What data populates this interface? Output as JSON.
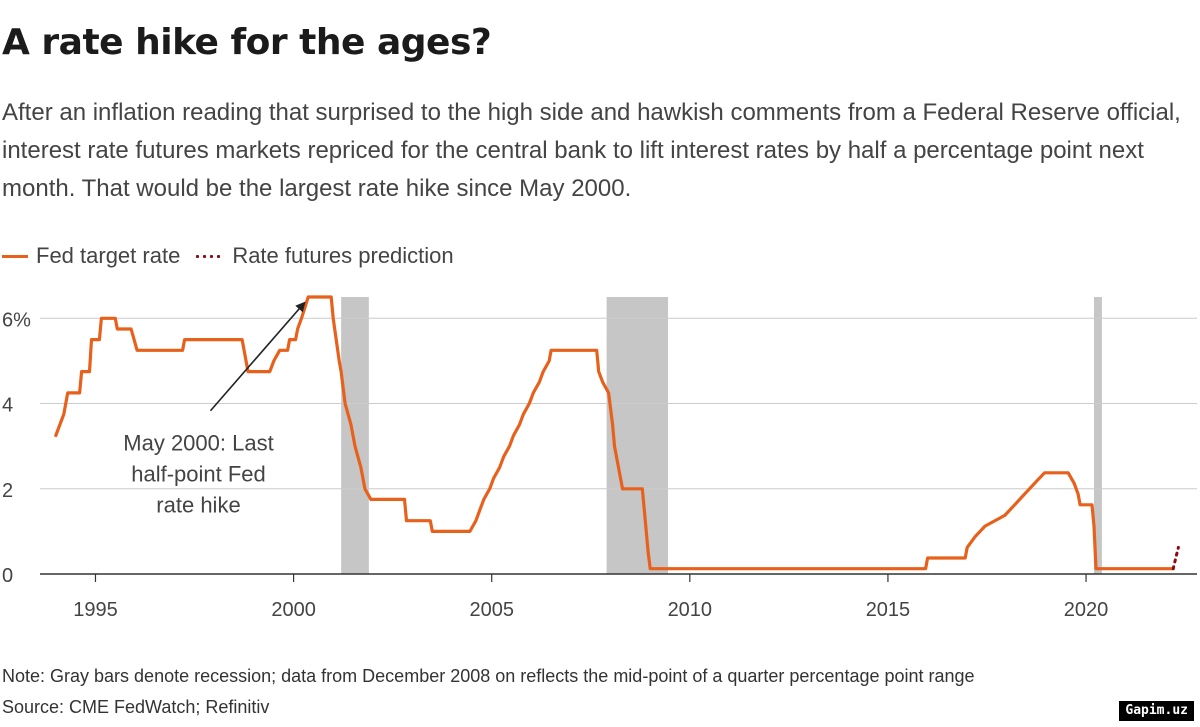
{
  "title": "A rate hike for the ages?",
  "subtitle": "After an inflation reading that surprised to the high side and hawkish comments from a Federal Reserve official, interest rate futures markets repriced for the central bank to lift interest rates by half a percentage point next month. That would be the largest rate hike since May 2000.",
  "legend": {
    "series1": "Fed target rate",
    "series2": "Rate futures prediction"
  },
  "note": "Note: Gray bars denote recession; data from December 2008 on reflects the mid-point of a quarter percentage point range",
  "source": "Source: CME FedWatch; Refinitiv",
  "watermark": "Gapim.uz",
  "colors": {
    "fed": "#e8611c",
    "prediction": "#8b0a14",
    "recession": "#c6c6c6",
    "grid": "#cccccc",
    "axis": "#333333"
  },
  "chart_data": {
    "type": "line",
    "xlim": [
      1993.6,
      2022.8
    ],
    "ylim": [
      0,
      6.5
    ],
    "x_ticks": [
      1995,
      2000,
      2005,
      2010,
      2015,
      2020
    ],
    "x_tick_labels": [
      "1995",
      "2000",
      "2005",
      "2010",
      "2015",
      "2020"
    ],
    "y_ticks": [
      0,
      2,
      4,
      6
    ],
    "y_tick_labels": [
      "0",
      "2",
      "4",
      "6%"
    ],
    "grid": "horizontal",
    "legend_position": "top-left",
    "recessions": [
      [
        2001.2,
        2001.9
      ],
      [
        2007.9,
        2009.45
      ],
      [
        2020.2,
        2020.4
      ]
    ],
    "annotation": {
      "text_lines": [
        "May 2000: Last",
        "half-point Fed",
        "rate hike"
      ],
      "x": 2000.37,
      "y": 6.5,
      "text_x": 1997.6,
      "text_y": 3.55
    },
    "series": [
      {
        "name": "Fed target rate",
        "points": [
          [
            1994.0,
            3.25
          ],
          [
            1994.2,
            3.75
          ],
          [
            1994.3,
            4.25
          ],
          [
            1994.6,
            4.25
          ],
          [
            1994.65,
            4.75
          ],
          [
            1994.85,
            4.75
          ],
          [
            1994.9,
            5.5
          ],
          [
            1995.1,
            5.5
          ],
          [
            1995.15,
            6.0
          ],
          [
            1995.5,
            6.0
          ],
          [
            1995.55,
            5.75
          ],
          [
            1995.9,
            5.75
          ],
          [
            1996.05,
            5.25
          ],
          [
            1997.2,
            5.25
          ],
          [
            1997.25,
            5.5
          ],
          [
            1998.7,
            5.5
          ],
          [
            1998.75,
            5.25
          ],
          [
            1998.85,
            4.75
          ],
          [
            1999.4,
            4.75
          ],
          [
            1999.5,
            5.0
          ],
          [
            1999.65,
            5.25
          ],
          [
            1999.85,
            5.25
          ],
          [
            1999.9,
            5.5
          ],
          [
            2000.05,
            5.5
          ],
          [
            2000.1,
            5.75
          ],
          [
            2000.2,
            6.0
          ],
          [
            2000.37,
            6.5
          ],
          [
            2000.95,
            6.5
          ],
          [
            2001.0,
            6.0
          ],
          [
            2001.15,
            5.0
          ],
          [
            2001.2,
            4.75
          ],
          [
            2001.3,
            4.0
          ],
          [
            2001.45,
            3.5
          ],
          [
            2001.55,
            3.0
          ],
          [
            2001.7,
            2.5
          ],
          [
            2001.8,
            2.0
          ],
          [
            2001.95,
            1.75
          ],
          [
            2002.8,
            1.75
          ],
          [
            2002.85,
            1.25
          ],
          [
            2003.45,
            1.25
          ],
          [
            2003.5,
            1.0
          ],
          [
            2004.45,
            1.0
          ],
          [
            2004.6,
            1.25
          ],
          [
            2004.7,
            1.5
          ],
          [
            2004.8,
            1.75
          ],
          [
            2004.95,
            2.0
          ],
          [
            2005.05,
            2.25
          ],
          [
            2005.2,
            2.5
          ],
          [
            2005.3,
            2.75
          ],
          [
            2005.45,
            3.0
          ],
          [
            2005.55,
            3.25
          ],
          [
            2005.7,
            3.5
          ],
          [
            2005.8,
            3.75
          ],
          [
            2005.95,
            4.0
          ],
          [
            2006.05,
            4.25
          ],
          [
            2006.2,
            4.5
          ],
          [
            2006.3,
            4.75
          ],
          [
            2006.45,
            5.0
          ],
          [
            2006.5,
            5.25
          ],
          [
            2007.65,
            5.25
          ],
          [
            2007.7,
            4.75
          ],
          [
            2007.8,
            4.5
          ],
          [
            2007.95,
            4.25
          ],
          [
            2008.05,
            3.5
          ],
          [
            2008.1,
            3.0
          ],
          [
            2008.25,
            2.25
          ],
          [
            2008.3,
            2.0
          ],
          [
            2008.8,
            2.0
          ],
          [
            2008.85,
            1.5
          ],
          [
            2008.95,
            0.5
          ],
          [
            2009.0,
            0.125
          ],
          [
            2015.95,
            0.125
          ],
          [
            2016.0,
            0.375
          ],
          [
            2016.95,
            0.375
          ],
          [
            2017.0,
            0.625
          ],
          [
            2017.2,
            0.875
          ],
          [
            2017.45,
            1.125
          ],
          [
            2017.95,
            1.375
          ],
          [
            2018.2,
            1.625
          ],
          [
            2018.45,
            1.875
          ],
          [
            2018.7,
            2.125
          ],
          [
            2018.95,
            2.375
          ],
          [
            2019.55,
            2.375
          ],
          [
            2019.7,
            2.125
          ],
          [
            2019.8,
            1.875
          ],
          [
            2019.85,
            1.625
          ],
          [
            2020.15,
            1.625
          ],
          [
            2020.2,
            1.125
          ],
          [
            2020.25,
            0.125
          ],
          [
            2022.2,
            0.125
          ]
        ]
      },
      {
        "name": "Rate futures prediction",
        "points": [
          [
            2022.2,
            0.125
          ],
          [
            2022.27,
            0.4
          ],
          [
            2022.33,
            0.625
          ]
        ]
      }
    ]
  }
}
